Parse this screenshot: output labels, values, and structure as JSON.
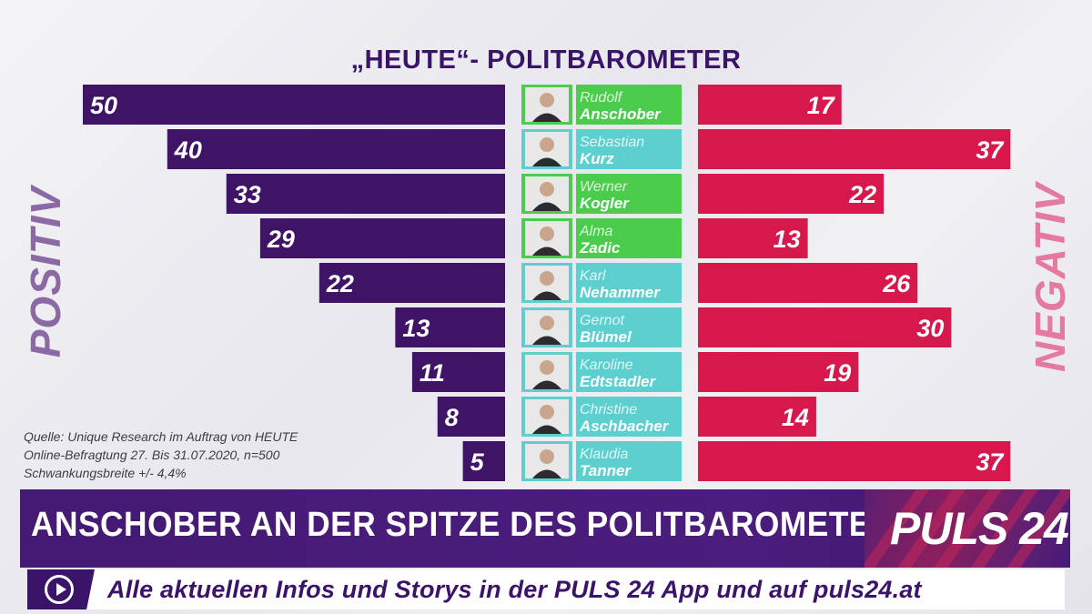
{
  "header": {
    "title": "„HEUTE“- POLITBAROMETER"
  },
  "side_labels": {
    "left": "POSITIV",
    "right": "NEGATIV"
  },
  "source": {
    "line1": "Quelle: Unique Research im Auftrag von HEUTE",
    "line2": "Online-Befragtung 27. Bis 31.07.2020, n=500",
    "line3": "Schwankungsbreite +/- 4,4%"
  },
  "banner": {
    "headline": "ANSCHOBER AN DER SPITZE DES POLITBAROMETERS",
    "logo": "PULS 24"
  },
  "ticker": {
    "text": "Alle aktuellen Infos und Storys in der PULS 24 App und auf puls24.at"
  },
  "colors": {
    "positive": "#3f1466",
    "negative": "#d6184d",
    "green": "#4ccc4c",
    "cyan": "#5ecfcf"
  },
  "chart_data": {
    "type": "bar",
    "title": "„HEUTE“- POLITBAROMETER",
    "categories": [
      {
        "first": "Rudolf",
        "last": "Anschober",
        "tag": "green"
      },
      {
        "first": "Sebastian",
        "last": "Kurz",
        "tag": "cyan"
      },
      {
        "first": "Werner",
        "last": "Kogler",
        "tag": "green"
      },
      {
        "first": "Alma",
        "last": "Zadic",
        "tag": "green"
      },
      {
        "first": "Karl",
        "last": "Nehammer",
        "tag": "cyan"
      },
      {
        "first": "Gernot",
        "last": "Blümel",
        "tag": "cyan"
      },
      {
        "first": "Karoline",
        "last": "Edtstadler",
        "tag": "cyan"
      },
      {
        "first": "Christine",
        "last": "Aschbacher",
        "tag": "cyan"
      },
      {
        "first": "Klaudia",
        "last": "Tanner",
        "tag": "cyan"
      }
    ],
    "series": [
      {
        "name": "POSITIV",
        "values": [
          50,
          40,
          33,
          29,
          22,
          13,
          11,
          8,
          5
        ]
      },
      {
        "name": "NEGATIV",
        "values": [
          17,
          37,
          22,
          13,
          26,
          30,
          19,
          14,
          37
        ]
      }
    ]
  }
}
